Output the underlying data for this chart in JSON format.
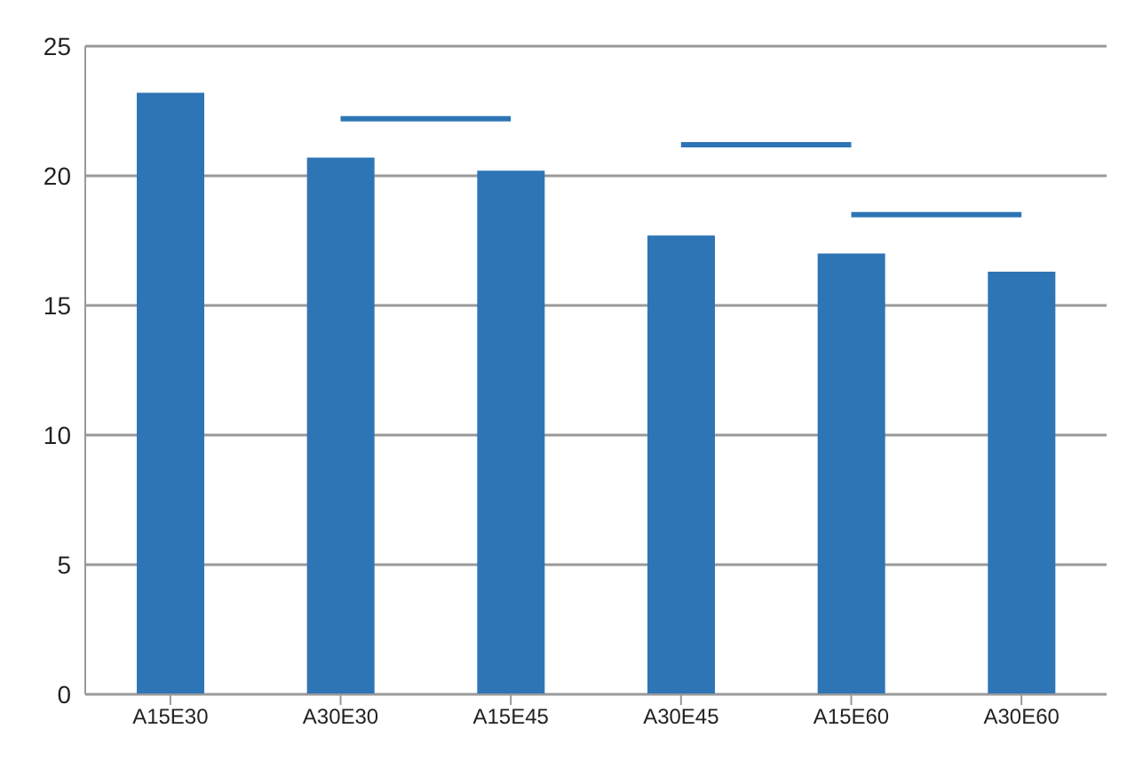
{
  "chart_data": {
    "type": "bar",
    "categories": [
      "A15E30",
      "A30E30",
      "A15E45",
      "A30E45",
      "A15E60",
      "A30E60"
    ],
    "series": [
      {
        "color": "#2e75b6",
        "values": [
          23.2,
          20.7,
          20.2,
          17.7,
          17.0,
          16.3
        ]
      },
      {
        "type": "line",
        "color": "#2e75b6",
        "x": [
          "A30E30",
          "A15E45"
        ],
        "values": [
          22.2,
          22.2
        ]
      },
      {
        "type": "line",
        "color": "#2e75b6",
        "x": [
          "A30E45",
          "A15E60"
        ],
        "values": [
          21.2,
          21.2
        ]
      },
      {
        "type": "line",
        "color": "#2e75b6",
        "x": [
          "A15E60",
          "A30E60"
        ],
        "values": [
          18.5,
          18.5
        ]
      }
    ],
    "ylim": [
      0,
      25
    ],
    "yticks": [
      0,
      5,
      10,
      15,
      20,
      25
    ],
    "grid": "y",
    "legend": false,
    "marker": "none",
    "line_style": "solid"
  }
}
